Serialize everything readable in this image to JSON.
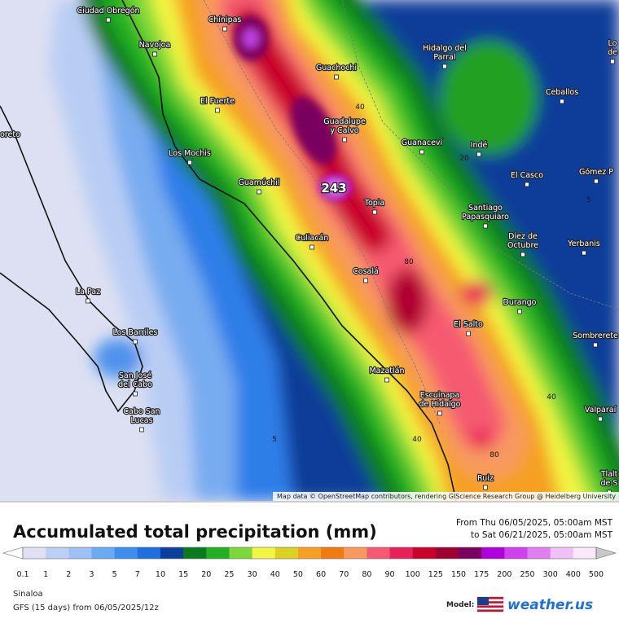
{
  "map": {
    "labels": [
      {
        "lines": [
          "Ciudad Obregón"
        ]
      },
      {
        "lines": [
          "Chínipas"
        ]
      },
      {
        "lines": [
          "Navojoa"
        ]
      },
      {
        "lines": [
          "Hidalgo del",
          "Parral"
        ]
      },
      {
        "lines": [
          "Lo",
          "de"
        ]
      },
      {
        "lines": [
          "Guachochi"
        ]
      },
      {
        "lines": [
          "El Fuerte"
        ]
      },
      {
        "lines": [
          "Ceballos"
        ]
      },
      {
        "lines": [
          "Guadalupe",
          "y Calvo"
        ]
      },
      {
        "lines": [
          "oreto"
        ]
      },
      {
        "lines": [
          "Guanaceví"
        ]
      },
      {
        "lines": [
          "Indé"
        ]
      },
      {
        "lines": [
          "Los Mochis"
        ]
      },
      {
        "lines": [
          "El Casco"
        ]
      },
      {
        "lines": [
          "Gómez P"
        ]
      },
      {
        "lines": [
          "Guamúchil"
        ]
      },
      {
        "lines": [
          "Topia"
        ]
      },
      {
        "lines": [
          "Santiago",
          "Papasquiaro"
        ]
      },
      {
        "lines": [
          "Culiacán"
        ]
      },
      {
        "lines": [
          "Diez de",
          "Octubre"
        ]
      },
      {
        "lines": [
          "Yerbanis"
        ]
      },
      {
        "lines": [
          "Cosalá"
        ]
      },
      {
        "lines": [
          "La Paz"
        ]
      },
      {
        "lines": [
          "Durango"
        ]
      },
      {
        "lines": [
          "Los Barriles"
        ]
      },
      {
        "lines": [
          "El Salto"
        ]
      },
      {
        "lines": [
          "Sombrerete"
        ]
      },
      {
        "lines": [
          "San José",
          "del Cabo"
        ]
      },
      {
        "lines": [
          "Mazatlán"
        ]
      },
      {
        "lines": [
          "Cabo San",
          "Lucas"
        ]
      },
      {
        "lines": [
          "Escuinapa",
          "de Hidalgo"
        ]
      },
      {
        "lines": [
          "Valparaí"
        ]
      },
      {
        "lines": [
          "Ruiz"
        ]
      },
      {
        "lines": [
          "Tlalt",
          "de S"
        ]
      }
    ],
    "contours": [
      243,
      40,
      20,
      5,
      80,
      40,
      40,
      80,
      5
    ],
    "attribution": "Map data © OpenStreetMap contributors, rendering GIScience Research Group @ Heidelberg University"
  },
  "legend": {
    "title": "Accumulated total precipitation (mm)",
    "from": "From Thu 06/05/2025, 05:00am MST",
    "to": "to Sat 06/21/2025, 05:00am MST",
    "values": [
      0.1,
      1,
      2,
      3,
      5,
      7,
      10,
      15,
      20,
      25,
      30,
      40,
      50,
      60,
      70,
      80,
      90,
      100,
      125,
      150,
      175,
      200,
      250,
      300,
      400,
      500
    ],
    "colors": [
      "#ffffff",
      "#e0e0f5",
      "#bcd0f5",
      "#9ec0f5",
      "#6aaaf2",
      "#3d8eee",
      "#1f6fe0",
      "#0c3f9c",
      "#0a7a1e",
      "#22b022",
      "#7cd838",
      "#f2f542",
      "#dcd020",
      "#f5a020",
      "#f07a10",
      "#f89a60",
      "#f55a70",
      "#e8205a",
      "#c8002a",
      "#a00030",
      "#7a0060",
      "#b000e0",
      "#d040f0",
      "#e080f0",
      "#f0c0f8",
      "#f8e8f8",
      "#c8c8c8"
    ]
  },
  "footer": {
    "region": "Sinaloa",
    "model_run": "GFS (15 days) from 06/05/2025/12z",
    "model_label": "Model:",
    "brand": "weather.us"
  }
}
